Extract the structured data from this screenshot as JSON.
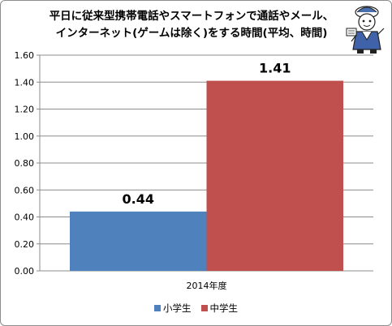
{
  "chart_data": {
    "type": "bar",
    "title_lines": [
      "平日に従来型携帯電話やスマートフォンで通話やメール、",
      "インターネット(ゲームは除く)をする時間(平均、時間)"
    ],
    "categories": [
      "2014年度"
    ],
    "series": [
      {
        "name": "小学生",
        "values": [
          0.44
        ],
        "color": "#4f81bd",
        "value_label": "0.44"
      },
      {
        "name": "中学生",
        "values": [
          1.41
        ],
        "color": "#c0504d",
        "value_label": "1.41"
      }
    ],
    "yticks": [
      "0.00",
      "0.20",
      "0.40",
      "0.60",
      "0.80",
      "1.00",
      "1.20",
      "1.40",
      "1.60"
    ],
    "ylim": [
      0,
      1.6
    ],
    "grid": true,
    "legend_position": "bottom"
  },
  "mascot": {
    "icon": "mascot-character-icon"
  }
}
